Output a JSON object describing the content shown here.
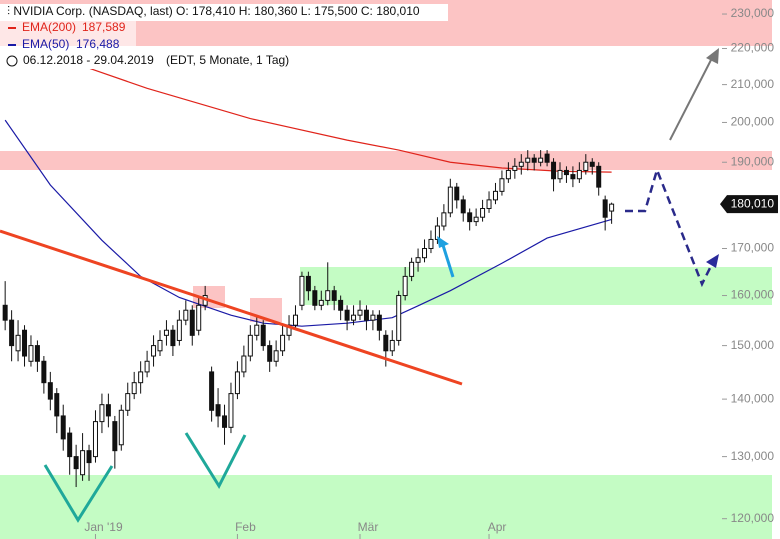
{
  "chart_data": {
    "type": "candlestick",
    "header": "NVIDIA Corp. (NASDAQ, last)  O: 178,410  H: 180,360  L: 175,500  C: 180,010",
    "date_range": "06.12.2018 - 29.04.2019",
    "period": "(EDT, 5 Monate, 1 Tag)",
    "price_label": "180,010",
    "log_scale": true,
    "xlim": [
      -0.8,
      110.8
    ],
    "ylim": [
      116900,
      234200
    ],
    "xticks": [
      {
        "value": 14,
        "label": "Jan '19"
      },
      {
        "value": 36,
        "label": "Feb"
      },
      {
        "value": 55,
        "label": "Mär"
      },
      {
        "value": 75,
        "label": "Apr"
      }
    ],
    "yticks": [
      {
        "value": 120000,
        "label": "120,000"
      },
      {
        "value": 130000,
        "label": "130,000"
      },
      {
        "value": 140000,
        "label": "140,000"
      },
      {
        "value": 150000,
        "label": "150,000"
      },
      {
        "value": 160000,
        "label": "160,000"
      },
      {
        "value": 170000,
        "label": "170,000"
      },
      {
        "value": 180000,
        "label": "180,000"
      },
      {
        "value": 190000,
        "label": "190,000"
      },
      {
        "value": 200000,
        "label": "200,000"
      },
      {
        "value": 210000,
        "label": "210,000"
      },
      {
        "value": 220000,
        "label": "220,000"
      },
      {
        "value": 230000,
        "label": "230,000"
      }
    ],
    "ohlc": [
      [
        158000,
        163000,
        153000,
        155000
      ],
      [
        155000,
        157000,
        147000,
        150000
      ],
      [
        149000,
        155000,
        147000,
        152000
      ],
      [
        153000,
        154000,
        146000,
        148000
      ],
      [
        147000,
        152000,
        146000,
        150000
      ],
      [
        150000,
        151000,
        145000,
        147000
      ],
      [
        147000,
        148000,
        141000,
        143000
      ],
      [
        143000,
        145000,
        138000,
        140000
      ],
      [
        141000,
        142000,
        134000,
        137000
      ],
      [
        137000,
        139000,
        131000,
        133000
      ],
      [
        134000,
        135000,
        127000,
        130000
      ],
      [
        130000,
        132000,
        125000,
        128000
      ],
      [
        127000,
        134000,
        126000,
        131000
      ],
      [
        131000,
        132000,
        126000,
        129000
      ],
      [
        130000,
        138000,
        129000,
        136000
      ],
      [
        136000,
        141000,
        134000,
        139000
      ],
      [
        139000,
        141000,
        135000,
        137000
      ],
      [
        136000,
        137000,
        128000,
        131000
      ],
      [
        132000,
        139000,
        131000,
        138000
      ],
      [
        138000,
        143000,
        137000,
        141000
      ],
      [
        141000,
        145000,
        140000,
        143000
      ],
      [
        143000,
        147000,
        141000,
        145000
      ],
      [
        145000,
        149000,
        144000,
        147000
      ],
      [
        148000,
        152000,
        146000,
        150000
      ],
      [
        149000,
        153000,
        148000,
        151000
      ],
      [
        152000,
        155000,
        150000,
        153000
      ],
      [
        153000,
        154000,
        148000,
        150000
      ],
      [
        151000,
        157000,
        150000,
        155000
      ],
      [
        155000,
        159000,
        154000,
        157000
      ],
      [
        157000,
        158000,
        150000,
        152000
      ],
      [
        153000,
        160000,
        152000,
        158000
      ],
      [
        158000,
        162000,
        157000,
        160000
      ],
      [
        145000,
        146000,
        136000,
        138000
      ],
      [
        139000,
        142000,
        135000,
        137000
      ],
      [
        137000,
        139000,
        132000,
        135000
      ],
      [
        135000,
        143000,
        134000,
        141000
      ],
      [
        141000,
        147000,
        140000,
        145000
      ],
      [
        145000,
        150000,
        144000,
        148000
      ],
      [
        148000,
        154000,
        147000,
        152000
      ],
      [
        152000,
        156000,
        151000,
        154000
      ],
      [
        154000,
        155000,
        149000,
        150000
      ],
      [
        150000,
        151000,
        145000,
        147000
      ],
      [
        147000,
        151000,
        146000,
        149000
      ],
      [
        149000,
        154000,
        148000,
        152000
      ],
      [
        152000,
        156000,
        151000,
        154000
      ],
      [
        154000,
        158000,
        153000,
        156000
      ],
      [
        158000,
        165000,
        157000,
        164000
      ],
      [
        164000,
        165000,
        159000,
        161000
      ],
      [
        161000,
        162000,
        157000,
        158000
      ],
      [
        158000,
        161000,
        157000,
        159000
      ],
      [
        159000,
        167000,
        158000,
        161000
      ],
      [
        161000,
        162000,
        157000,
        159000
      ],
      [
        159000,
        160000,
        155000,
        157000
      ],
      [
        157000,
        158000,
        153000,
        155000
      ],
      [
        155000,
        158000,
        154000,
        156000
      ],
      [
        156000,
        159000,
        155000,
        157000
      ],
      [
        157000,
        158000,
        153000,
        155000
      ],
      [
        155000,
        157000,
        153000,
        156000
      ],
      [
        156000,
        157000,
        151000,
        153000
      ],
      [
        152000,
        153000,
        146000,
        149000
      ],
      [
        149000,
        153000,
        148000,
        151000
      ],
      [
        151000,
        161000,
        150000,
        160000
      ],
      [
        160000,
        166000,
        159000,
        164000
      ],
      [
        164000,
        168000,
        163000,
        167000
      ],
      [
        167000,
        170000,
        165000,
        168000
      ],
      [
        168000,
        172000,
        167000,
        170000
      ],
      [
        170000,
        174000,
        169000,
        172000
      ],
      [
        172000,
        177000,
        171000,
        175000
      ],
      [
        175000,
        180000,
        174000,
        178000
      ],
      [
        178000,
        186000,
        177000,
        184000
      ],
      [
        184000,
        185000,
        179000,
        181000
      ],
      [
        181000,
        182000,
        176000,
        178000
      ],
      [
        178000,
        179000,
        174000,
        176000
      ],
      [
        176000,
        179000,
        175000,
        177000
      ],
      [
        177000,
        181000,
        176000,
        179000
      ],
      [
        179000,
        183000,
        178000,
        181000
      ],
      [
        181000,
        185000,
        180000,
        183000
      ],
      [
        183000,
        188000,
        182000,
        186000
      ],
      [
        186000,
        190000,
        185000,
        188000
      ],
      [
        188000,
        191000,
        186000,
        189000
      ],
      [
        189000,
        192000,
        187000,
        190000
      ],
      [
        190000,
        193000,
        188000,
        191000
      ],
      [
        191000,
        192000,
        188000,
        190000
      ],
      [
        190000,
        193000,
        189000,
        191000
      ],
      [
        192000,
        193000,
        189000,
        190000
      ],
      [
        190000,
        191000,
        183000,
        186000
      ],
      [
        186000,
        190000,
        185000,
        188000
      ],
      [
        188000,
        189000,
        185000,
        187000
      ],
      [
        187000,
        189000,
        184000,
        186000
      ],
      [
        186000,
        190000,
        185000,
        188000
      ],
      [
        188000,
        192000,
        187000,
        190000
      ],
      [
        190000,
        191000,
        187000,
        189000
      ],
      [
        189000,
        190000,
        182000,
        184000
      ],
      [
        181000,
        182000,
        174000,
        177000
      ],
      [
        178410,
        180360,
        175500,
        180010
      ]
    ],
    "series": [
      {
        "name": "EMA(200)",
        "value_label": "187,589",
        "color": "#e0241b",
        "x": [
          13,
          22,
          38,
          53,
          61,
          69,
          77,
          86,
          94
        ],
        "values": [
          214500,
          209000,
          201000,
          195500,
          193000,
          190000,
          188600,
          187800,
          187589
        ]
      },
      {
        "name": "EMA(50)",
        "value_label": "176,488",
        "color": "#1a1aa6",
        "x": [
          0,
          7,
          15,
          21,
          27,
          35,
          40,
          46,
          53,
          60,
          64,
          69,
          77,
          84,
          94
        ],
        "values": [
          200600,
          184500,
          171800,
          164000,
          159600,
          156000,
          154400,
          153800,
          154400,
          155500,
          157900,
          161000,
          166800,
          172300,
          176488
        ]
      }
    ]
  }
}
